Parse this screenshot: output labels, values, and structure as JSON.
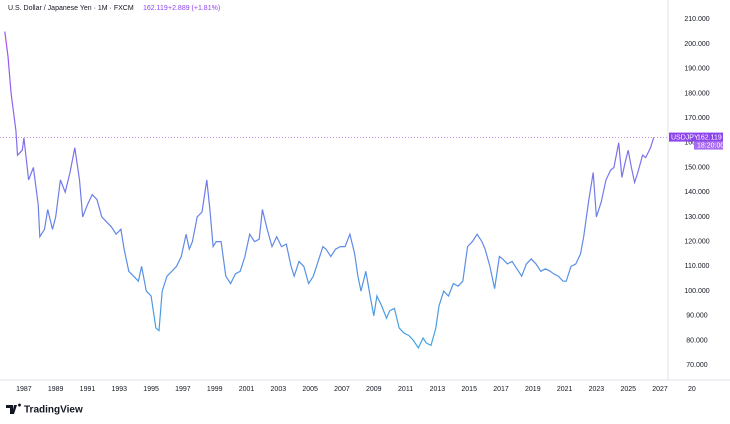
{
  "header": {
    "title": "U.S. Dollar / Japanese Yen · 1M · FXCM",
    "last": "162.119",
    "change": "+2.889 (+1.81%)"
  },
  "price_tag": {
    "symbol": "USDJPY",
    "price": "162.119",
    "time": "18:20:00"
  },
  "logo": "TradingView",
  "chart_data": {
    "type": "line",
    "x": [
      1985.8,
      1986.0,
      1986.2,
      1986.4,
      1986.5,
      1986.6,
      1986.9,
      1987.0,
      1987.3,
      1987.6,
      1987.9,
      1988.0,
      1988.3,
      1988.5,
      1988.8,
      1989.0,
      1989.3,
      1989.6,
      1989.9,
      1990.2,
      1990.5,
      1990.7,
      1991.0,
      1991.3,
      1991.6,
      1991.9,
      1992.2,
      1992.5,
      1992.8,
      1993.1,
      1993.3,
      1993.6,
      1993.9,
      1994.2,
      1994.4,
      1994.7,
      1995.0,
      1995.3,
      1995.5,
      1995.7,
      1996.0,
      1996.3,
      1996.6,
      1996.9,
      1997.2,
      1997.4,
      1997.6,
      1997.9,
      1998.2,
      1998.5,
      1998.7,
      1998.9,
      1999.1,
      1999.4,
      1999.7,
      2000.0,
      2000.3,
      2000.6,
      2000.9,
      2001.2,
      2001.5,
      2001.8,
      2002.0,
      2002.3,
      2002.6,
      2002.9,
      2003.2,
      2003.5,
      2003.8,
      2004.0,
      2004.3,
      2004.6,
      2004.9,
      2005.2,
      2005.5,
      2005.8,
      2006.0,
      2006.3,
      2006.6,
      2006.9,
      2007.2,
      2007.5,
      2007.8,
      2008.0,
      2008.2,
      2008.5,
      2008.8,
      2009.0,
      2009.2,
      2009.5,
      2009.8,
      2010.0,
      2010.3,
      2010.6,
      2010.9,
      2011.2,
      2011.5,
      2011.8,
      2012.1,
      2012.3,
      2012.6,
      2012.9,
      2013.1,
      2013.4,
      2013.7,
      2014.0,
      2014.3,
      2014.6,
      2014.9,
      2015.2,
      2015.5,
      2015.8,
      2016.0,
      2016.3,
      2016.6,
      2016.9,
      2017.1,
      2017.4,
      2017.7,
      2018.0,
      2018.3,
      2018.6,
      2018.9,
      2019.2,
      2019.5,
      2019.8,
      2020.1,
      2020.3,
      2020.6,
      2020.9,
      2021.1,
      2021.4,
      2021.7,
      2022.0,
      2022.2,
      2022.5,
      2022.8,
      2023.0,
      2023.3,
      2023.6,
      2023.9,
      2024.1,
      2024.4,
      2024.6,
      2024.8,
      2025.0,
      2025.2,
      2025.4,
      2025.6,
      2025.9,
      2026.1,
      2026.4,
      2026.6
    ],
    "series": [
      {
        "name": "USDJPY",
        "colors": [
          "#a64ff0",
          "#3ea6e0"
        ],
        "values": [
          205,
          195,
          180,
          170,
          165,
          155,
          157,
          162,
          145,
          150,
          135,
          122,
          125,
          133,
          125,
          130,
          145,
          140,
          148,
          158,
          145,
          130,
          135,
          139,
          137,
          130,
          128,
          126,
          123,
          125,
          117,
          108,
          106,
          104,
          110,
          100,
          98,
          85,
          84,
          100,
          106,
          108,
          110,
          114,
          123,
          117,
          120,
          130,
          132,
          145,
          133,
          118,
          120,
          120,
          106,
          103,
          107,
          108,
          114,
          123,
          120,
          121,
          133,
          125,
          118,
          122,
          118,
          119,
          110,
          106,
          112,
          110,
          103,
          106,
          112,
          118,
          117,
          114,
          117,
          118,
          118,
          123,
          115,
          106,
          100,
          108,
          97,
          90,
          98,
          94,
          89,
          92,
          93,
          85,
          83,
          82,
          80,
          77,
          81,
          79,
          78,
          85,
          94,
          100,
          98,
          103,
          102,
          104,
          118,
          120,
          123,
          120,
          117,
          110,
          101,
          114,
          113,
          111,
          112,
          109,
          106,
          111,
          113,
          111,
          108,
          109,
          108,
          107,
          106,
          104,
          104,
          110,
          111,
          115,
          122,
          136,
          148,
          130,
          136,
          145,
          149,
          150,
          160,
          146,
          152,
          157,
          150,
          144,
          148,
          155,
          154,
          158,
          162.119
        ]
      }
    ],
    "xlim": [
      1985.5,
      2027.5
    ],
    "ylim": [
      64,
      217
    ],
    "xticks": [
      1987,
      1989,
      1991,
      1993,
      1995,
      1997,
      1999,
      2001,
      2003,
      2005,
      2007,
      2009,
      2011,
      2013,
      2015,
      2017,
      2019,
      2021,
      2023,
      2025,
      2027,
      {
        "value": 2029,
        "label": "20"
      }
    ],
    "yticks": [
      {
        "value": 70,
        "label": "70.000"
      },
      {
        "value": 80,
        "label": "80.000"
      },
      {
        "value": 90,
        "label": "90.000"
      },
      {
        "value": 100,
        "label": "100.000"
      },
      {
        "value": 110,
        "label": "110.000"
      },
      {
        "value": 120,
        "label": "120.000"
      },
      {
        "value": 130,
        "label": "130.000"
      },
      {
        "value": 140,
        "label": "140.000"
      },
      {
        "value": 150,
        "label": "150.000"
      },
      {
        "value": 160,
        "label": "160.000"
      },
      {
        "value": 170,
        "label": "170.000"
      },
      {
        "value": 180,
        "label": "180.000"
      },
      {
        "value": 190,
        "label": "190.000"
      },
      {
        "value": 200,
        "label": "200.000"
      },
      {
        "value": 210,
        "label": "210.000"
      }
    ],
    "grid": false
  }
}
